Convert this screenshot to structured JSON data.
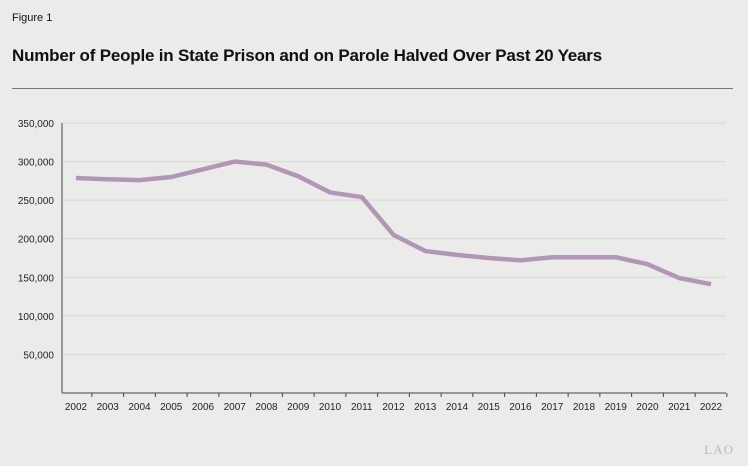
{
  "figure_label": "Figure 1",
  "logo_text": "LAO",
  "chart_data": {
    "type": "line",
    "title": "Number of People in State Prison and on Parole Halved Over Past 20 Years",
    "xlabel": "",
    "ylabel": "",
    "ylim": [
      0,
      350000
    ],
    "yticks": [
      50000,
      100000,
      150000,
      200000,
      250000,
      300000,
      350000
    ],
    "ytick_labels": [
      "50,000",
      "100,000",
      "150,000",
      "200,000",
      "250,000",
      "300,000",
      "350,000"
    ],
    "grid": true,
    "line_color": "#b196b6",
    "x": [
      "2002",
      "2003",
      "2004",
      "2005",
      "2006",
      "2007",
      "2008",
      "2009",
      "2010",
      "2011",
      "2012",
      "2013",
      "2014",
      "2015",
      "2016",
      "2017",
      "2018",
      "2019",
      "2020",
      "2021",
      "2022"
    ],
    "values": [
      278700,
      277000,
      276000,
      280000,
      290000,
      300000,
      296000,
      281000,
      260000,
      254000,
      205000,
      184000,
      179000,
      175000,
      172000,
      176000,
      176000,
      176000,
      167000,
      149000,
      141000
    ]
  }
}
